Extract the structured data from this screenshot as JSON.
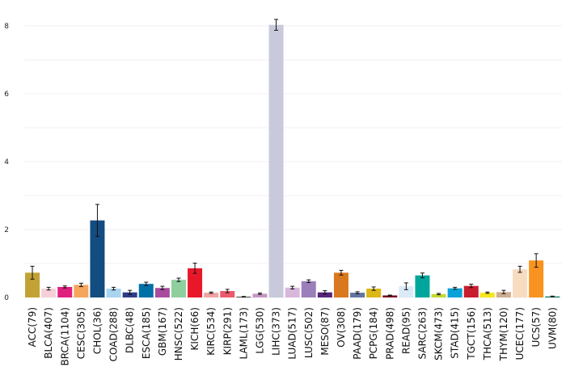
{
  "chart_data": {
    "type": "bar",
    "title": "",
    "xlabel": "",
    "ylabel": "",
    "ylim": [
      0,
      8.4
    ],
    "yticks": [
      0,
      2,
      4,
      6,
      8
    ],
    "grid": true,
    "legend": "none",
    "categories": [
      "ACC(79)",
      "BLCA(407)",
      "BRCA(1104)",
      "CESC(305)",
      "CHOL(36)",
      "COAD(288)",
      "DLBC(48)",
      "ESCA(185)",
      "GBM(167)",
      "HNSC(522)",
      "KICH(66)",
      "KIRC(534)",
      "KIRP(291)",
      "LAML(173)",
      "LGG(530)",
      "LIHC(373)",
      "LUAD(517)",
      "LUSC(502)",
      "MESO(87)",
      "OV(308)",
      "PAAD(179)",
      "PCPG(184)",
      "PRAD(498)",
      "READ(95)",
      "SARC(263)",
      "SKCM(473)",
      "STAD(415)",
      "TGCT(156)",
      "THCA(513)",
      "THYM(120)",
      "UCEC(177)",
      "UCS(57)",
      "UVM(80)"
    ],
    "values": [
      0.73,
      0.26,
      0.31,
      0.37,
      2.27,
      0.26,
      0.15,
      0.4,
      0.28,
      0.52,
      0.86,
      0.14,
      0.19,
      0.02,
      0.11,
      8.03,
      0.29,
      0.48,
      0.15,
      0.73,
      0.14,
      0.26,
      0.06,
      0.33,
      0.65,
      0.1,
      0.27,
      0.34,
      0.14,
      0.16,
      0.83,
      1.09,
      0.03
    ],
    "errors": [
      0.19,
      0.04,
      0.03,
      0.05,
      0.47,
      0.04,
      0.06,
      0.05,
      0.05,
      0.05,
      0.15,
      0.02,
      0.05,
      0.01,
      0.02,
      0.16,
      0.04,
      0.04,
      0.05,
      0.07,
      0.03,
      0.05,
      0.01,
      0.1,
      0.07,
      0.02,
      0.03,
      0.05,
      0.02,
      0.05,
      0.09,
      0.2,
      0.01
    ],
    "colors": [
      "#c2a234",
      "#f7cfd8",
      "#e0207f",
      "#f5a55c",
      "#134c80",
      "#a8d4f0",
      "#2e3d88",
      "#0071a8",
      "#a84d9e",
      "#8fcf9e",
      "#e8182a",
      "#f2a3a6",
      "#ec5a6b",
      "#222222",
      "#c597c3",
      "#c8cadb",
      "#d9b7dd",
      "#9b7fba",
      "#56247a",
      "#d9781e",
      "#6374a0",
      "#dcb717",
      "#7a1020",
      "#dceaf8",
      "#00a69b",
      "#c5d832",
      "#0aa2d9",
      "#c91d2e",
      "#f7e61a",
      "#cfae92",
      "#f8dcc0",
      "#f7931e",
      "#007a5e"
    ]
  }
}
